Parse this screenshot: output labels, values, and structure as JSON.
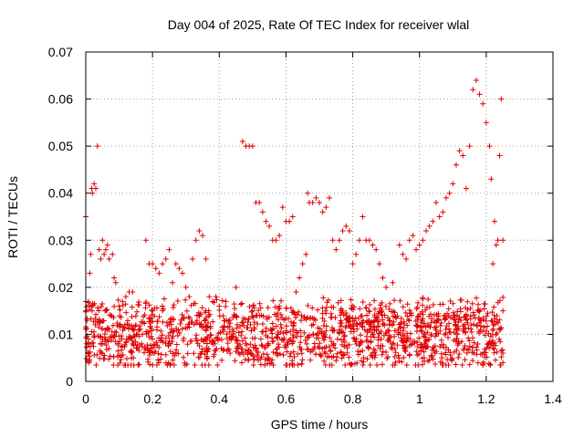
{
  "chart_data": {
    "type": "scatter",
    "title": "Day 004 of 2025, Rate Of TEC Index for receiver wlal",
    "xlabel": "GPS time / hours",
    "ylabel": "ROTI / TECUs",
    "xlim": [
      0,
      1.4
    ],
    "ylim": [
      0,
      0.07
    ],
    "xticks": [
      "0",
      "0.2",
      "0.4",
      "0.6",
      "0.8",
      "1",
      "1.2",
      "1.4"
    ],
    "yticks": [
      "0",
      "0.01",
      "0.02",
      "0.03",
      "0.04",
      "0.05",
      "0.06",
      "0.07"
    ],
    "grid": true,
    "marker": "+",
    "color": "#e00000",
    "series": [
      {
        "points": [
          [
            0.0,
            0.035
          ],
          [
            0.0,
            0.017
          ],
          [
            0.003,
            0.008
          ],
          [
            0.006,
            0.006
          ],
          [
            0.008,
            0.009
          ],
          [
            0.01,
            0.004
          ],
          [
            0.012,
            0.023
          ],
          [
            0.015,
            0.027
          ],
          [
            0.018,
            0.041
          ],
          [
            0.02,
            0.04
          ],
          [
            0.025,
            0.042
          ],
          [
            0.03,
            0.041
          ],
          [
            0.035,
            0.05
          ],
          [
            0.04,
            0.028
          ],
          [
            0.045,
            0.026
          ],
          [
            0.05,
            0.03
          ],
          [
            0.055,
            0.027
          ],
          [
            0.06,
            0.028
          ],
          [
            0.065,
            0.029
          ],
          [
            0.07,
            0.026
          ],
          [
            0.08,
            0.027
          ],
          [
            0.085,
            0.022
          ],
          [
            0.09,
            0.021
          ],
          [
            0.1,
            0.016
          ],
          [
            0.11,
            0.017
          ],
          [
            0.12,
            0.018
          ],
          [
            0.13,
            0.019
          ],
          [
            0.14,
            0.019
          ],
          [
            0.15,
            0.012
          ],
          [
            0.16,
            0.011
          ],
          [
            0.17,
            0.01
          ],
          [
            0.18,
            0.03
          ],
          [
            0.19,
            0.025
          ],
          [
            0.2,
            0.025
          ],
          [
            0.21,
            0.024
          ],
          [
            0.22,
            0.023
          ],
          [
            0.23,
            0.025
          ],
          [
            0.24,
            0.026
          ],
          [
            0.25,
            0.028
          ],
          [
            0.26,
            0.021
          ],
          [
            0.27,
            0.025
          ],
          [
            0.28,
            0.024
          ],
          [
            0.29,
            0.023
          ],
          [
            0.3,
            0.02
          ],
          [
            0.31,
            0.018
          ],
          [
            0.32,
            0.026
          ],
          [
            0.33,
            0.03
          ],
          [
            0.34,
            0.032
          ],
          [
            0.35,
            0.031
          ],
          [
            0.36,
            0.026
          ],
          [
            0.37,
            0.018
          ],
          [
            0.38,
            0.017
          ],
          [
            0.39,
            0.018
          ],
          [
            0.4,
            0.016
          ],
          [
            0.42,
            0.017
          ],
          [
            0.45,
            0.02
          ],
          [
            0.47,
            0.051
          ],
          [
            0.48,
            0.05
          ],
          [
            0.49,
            0.05
          ],
          [
            0.5,
            0.05
          ],
          [
            0.51,
            0.038
          ],
          [
            0.52,
            0.038
          ],
          [
            0.53,
            0.036
          ],
          [
            0.54,
            0.034
          ],
          [
            0.55,
            0.033
          ],
          [
            0.56,
            0.03
          ],
          [
            0.57,
            0.03
          ],
          [
            0.58,
            0.031
          ],
          [
            0.59,
            0.037
          ],
          [
            0.6,
            0.034
          ],
          [
            0.61,
            0.034
          ],
          [
            0.62,
            0.035
          ],
          [
            0.63,
            0.019
          ],
          [
            0.64,
            0.022
          ],
          [
            0.65,
            0.025
          ],
          [
            0.66,
            0.027
          ],
          [
            0.665,
            0.04
          ],
          [
            0.67,
            0.038
          ],
          [
            0.68,
            0.038
          ],
          [
            0.69,
            0.039
          ],
          [
            0.7,
            0.038
          ],
          [
            0.71,
            0.036
          ],
          [
            0.72,
            0.037
          ],
          [
            0.73,
            0.039
          ],
          [
            0.74,
            0.03
          ],
          [
            0.75,
            0.028
          ],
          [
            0.76,
            0.03
          ],
          [
            0.77,
            0.032
          ],
          [
            0.78,
            0.033
          ],
          [
            0.79,
            0.032
          ],
          [
            0.8,
            0.025
          ],
          [
            0.81,
            0.027
          ],
          [
            0.82,
            0.03
          ],
          [
            0.83,
            0.035
          ],
          [
            0.84,
            0.03
          ],
          [
            0.85,
            0.03
          ],
          [
            0.86,
            0.029
          ],
          [
            0.87,
            0.028
          ],
          [
            0.88,
            0.025
          ],
          [
            0.89,
            0.022
          ],
          [
            0.9,
            0.02
          ],
          [
            0.92,
            0.021
          ],
          [
            0.94,
            0.029
          ],
          [
            0.95,
            0.027
          ],
          [
            0.96,
            0.026
          ],
          [
            0.97,
            0.03
          ],
          [
            0.98,
            0.031
          ],
          [
            0.99,
            0.028
          ],
          [
            1.0,
            0.029
          ],
          [
            1.01,
            0.03
          ],
          [
            1.02,
            0.032
          ],
          [
            1.03,
            0.033
          ],
          [
            1.04,
            0.034
          ],
          [
            1.05,
            0.038
          ],
          [
            1.06,
            0.035
          ],
          [
            1.07,
            0.036
          ],
          [
            1.08,
            0.039
          ],
          [
            1.09,
            0.04
          ],
          [
            1.1,
            0.042
          ],
          [
            1.11,
            0.046
          ],
          [
            1.12,
            0.049
          ],
          [
            1.13,
            0.048
          ],
          [
            1.14,
            0.041
          ],
          [
            1.15,
            0.05
          ],
          [
            1.16,
            0.062
          ],
          [
            1.17,
            0.064
          ],
          [
            1.18,
            0.061
          ],
          [
            1.19,
            0.059
          ],
          [
            1.2,
            0.055
          ],
          [
            1.21,
            0.05
          ],
          [
            1.215,
            0.043
          ],
          [
            1.22,
            0.025
          ],
          [
            1.225,
            0.034
          ],
          [
            1.23,
            0.029
          ],
          [
            1.235,
            0.03
          ],
          [
            1.24,
            0.048
          ],
          [
            1.245,
            0.06
          ],
          [
            1.25,
            0.006
          ],
          [
            1.25,
            0.004
          ],
          [
            1.25,
            0.015
          ],
          [
            1.25,
            0.03
          ]
        ]
      }
    ]
  }
}
